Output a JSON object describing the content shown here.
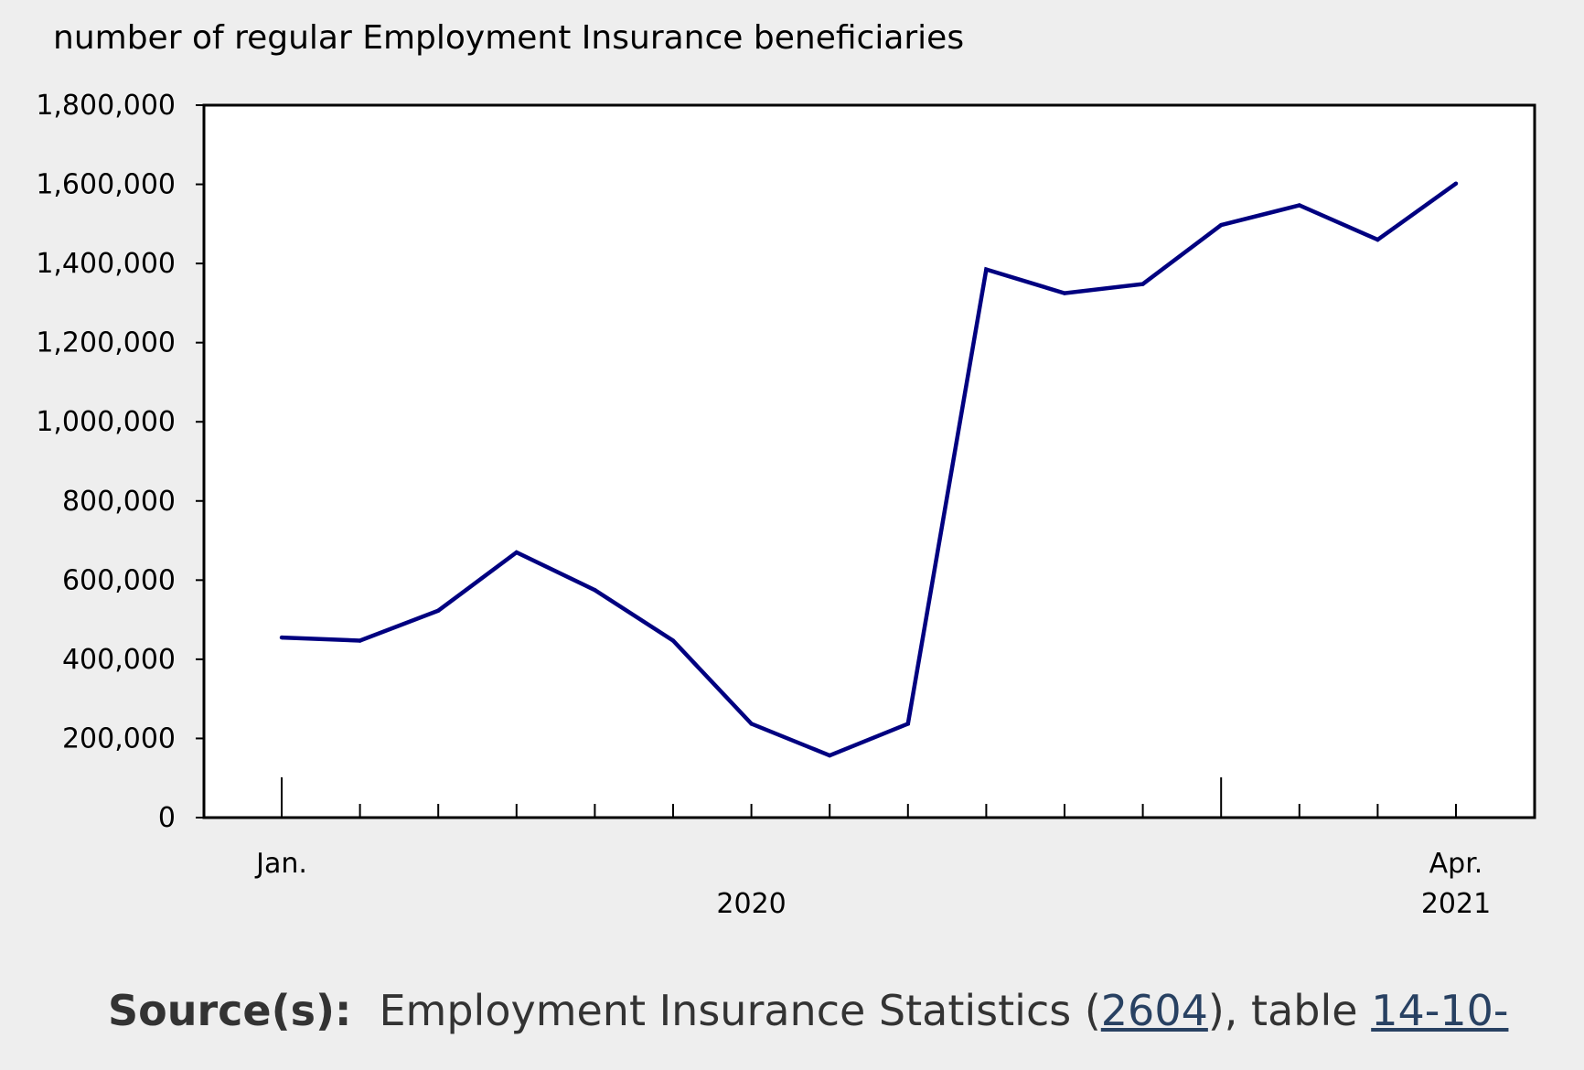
{
  "chart_data": {
    "type": "line",
    "title": "",
    "ylabel": "number of regular Employment Insurance beneficiaries",
    "xlabel": "",
    "ylim": [
      0,
      1800000
    ],
    "yticks": [
      0,
      200000,
      400000,
      600000,
      800000,
      1000000,
      1200000,
      1400000,
      1600000,
      1800000
    ],
    "ytick_labels": [
      "0",
      "200,000",
      "400,000",
      "600,000",
      "800,000",
      "1,000,000",
      "1,200,000",
      "1,400,000",
      "1,600,000",
      "1,800,000"
    ],
    "x": [
      "2020-01",
      "2020-02",
      "2020-03",
      "2020-04",
      "2020-05",
      "2020-06",
      "2020-07",
      "2020-08",
      "2020-09",
      "2020-10",
      "2020-11",
      "2020-12",
      "2021-01",
      "2021-02",
      "2021-03",
      "2021-04"
    ],
    "x_labels": [
      {
        "text": "Jan.",
        "at": "2020-01"
      },
      {
        "text": "Apr.",
        "at": "2021-04"
      }
    ],
    "year_labels": [
      {
        "text": "2020",
        "at": "2020-07"
      },
      {
        "text": "2021",
        "at": "2021-04"
      }
    ],
    "series": [
      {
        "values": [
          455000,
          447000,
          523000,
          670000,
          575000,
          447000,
          237000,
          157000,
          237000,
          1385000,
          1325000,
          1348000,
          1497000,
          1547000,
          1460000,
          1602000
        ],
        "color": "#000080"
      }
    ],
    "grid": false,
    "legend": "none"
  },
  "source": {
    "label": "Source(s):",
    "text_before": "Employment Insurance Statistics (",
    "link1": "2604",
    "text_middle": "), table ",
    "link2": "14-10-"
  }
}
